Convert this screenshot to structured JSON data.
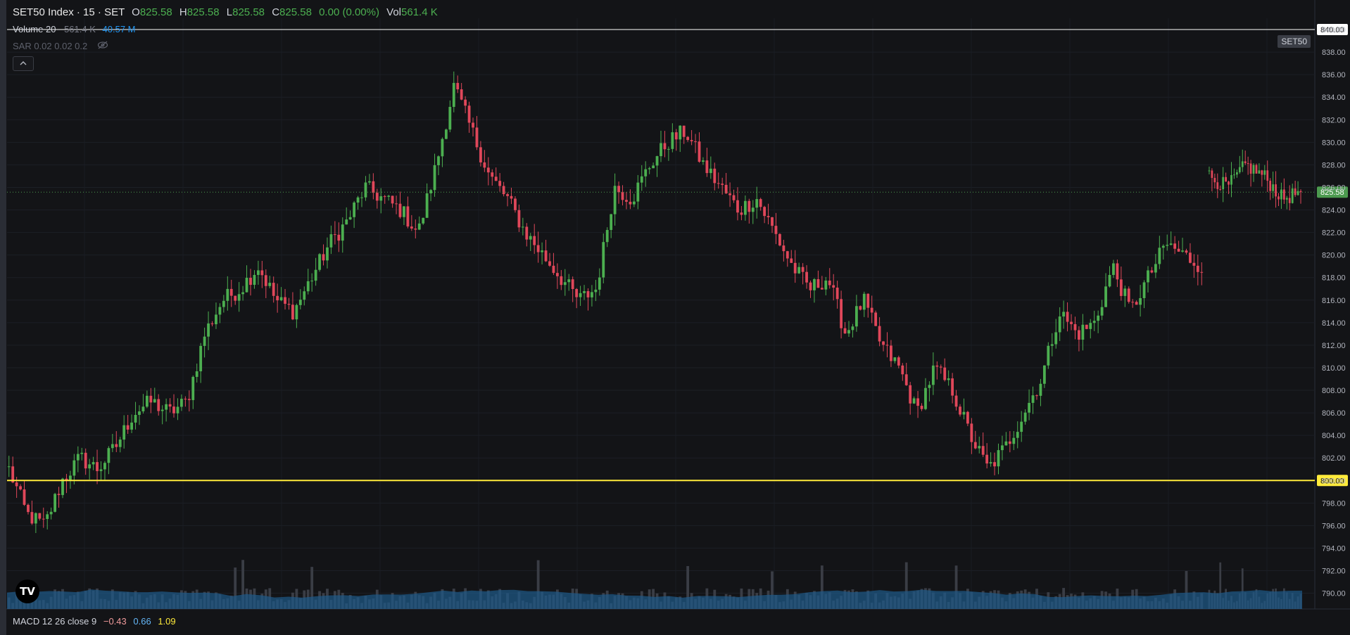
{
  "legend": {
    "symbol": "SET50 Index · 15 · SET",
    "open_key": "O",
    "open": "825.58",
    "high_key": "H",
    "high": "825.58",
    "low_key": "L",
    "low": "825.58",
    "close_key": "C",
    "close": "825.58",
    "change": "0.00 (0.00%)",
    "vol_key": "Vol",
    "vol": "561.4 K"
  },
  "volume_legend": {
    "name": "Volume 20",
    "value": "561.4 K",
    "ma": "40.57 M"
  },
  "sar_legend": {
    "name": "SAR 0.02 0.02 0.2"
  },
  "macd_legend": {
    "name": "MACD 12 26 close 9",
    "macd": "−0.43",
    "signal": "0.66",
    "hist": "1.09"
  },
  "symbol_badge": "SET50",
  "collapse_icon": "chevron-up-icon",
  "logo_text": "TV",
  "colors": {
    "up": "#26a69a",
    "up_body": "#4caf50",
    "down": "#ef5350",
    "down_body": "#e0475a",
    "horizontal_line": "#ffeb3b",
    "price_tag": "#4c9a4f",
    "volume_ma": "#1e5a8a"
  },
  "chart_data": {
    "type": "candlestick",
    "title": "SET50 Index · 15 · SET",
    "y_axis_side": "right",
    "ylim": [
      788.6,
      841.0
    ],
    "yticks": [
      "840.00",
      "838.00",
      "836.00",
      "834.00",
      "832.00",
      "830.00",
      "828.00",
      "826.00",
      "824.00",
      "822.00",
      "820.00",
      "818.00",
      "816.00",
      "814.00",
      "812.00",
      "810.00",
      "808.00",
      "806.00",
      "804.00",
      "802.00",
      "800.00",
      "798.00",
      "796.00",
      "794.00",
      "792.00",
      "790.00"
    ],
    "last_price": 825.58,
    "last_price_label": "825.58",
    "horizontal_lines": [
      {
        "price": 840.0,
        "label": "840.00",
        "color": "#ffffff"
      },
      {
        "price": 800.0,
        "label": "800.00",
        "color": "#ffeb3b"
      }
    ],
    "close_path": [
      801,
      797,
      796,
      800,
      802,
      801,
      803,
      806,
      807,
      806,
      807,
      813,
      816,
      817,
      819,
      816,
      815,
      818,
      821,
      823,
      826,
      825,
      824,
      822,
      828,
      835,
      831,
      827,
      825,
      822,
      820,
      818,
      816,
      817,
      826,
      825,
      828,
      830,
      831,
      828,
      826,
      824,
      825,
      822,
      819,
      817,
      818,
      813,
      816,
      812,
      810,
      806,
      810,
      808,
      804,
      801,
      803,
      806,
      809,
      815,
      813,
      814,
      819,
      815,
      818,
      821,
      820,
      819
    ],
    "gap_after_index": 67,
    "tail_path": [
      827,
      826,
      828,
      827,
      825,
      825.58
    ],
    "candle_count": 372,
    "volume_note": "volume bars with Volume 20 moving average area at bottom"
  }
}
